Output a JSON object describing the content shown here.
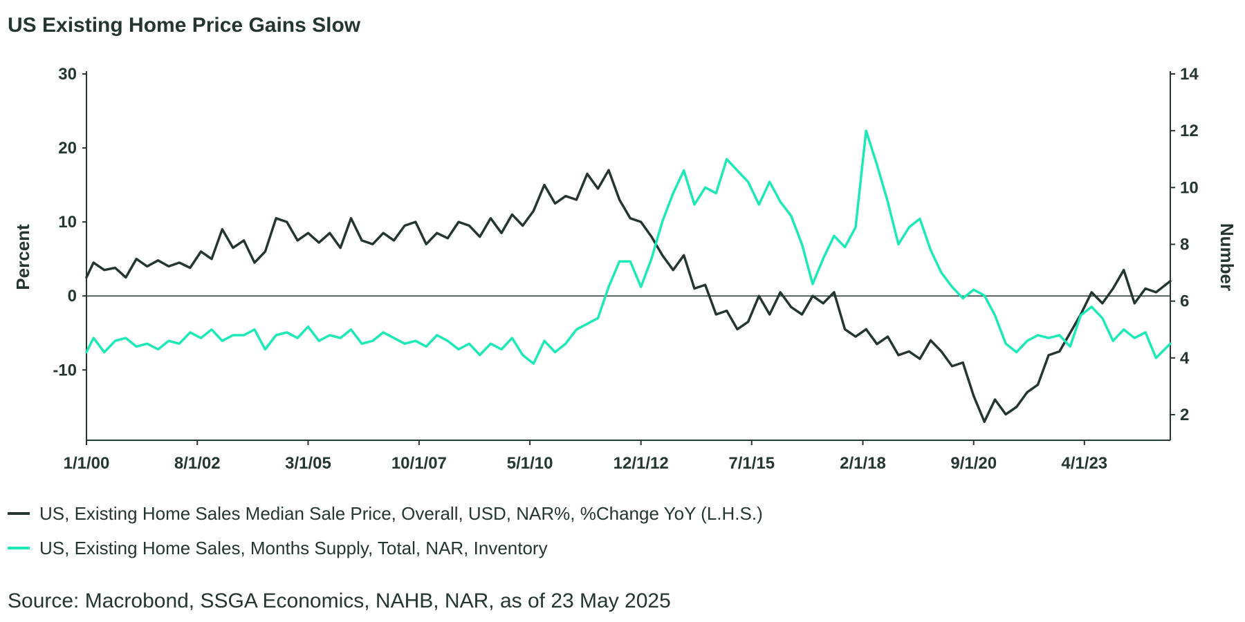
{
  "title": "US Existing Home Price Gains Slow",
  "source": "Source: Macrobond, SSGA Economics, NAHB, NAR, as of 23 May 2025",
  "colors": {
    "series_price": "#253531",
    "series_supply": "#1de9b6",
    "axis": "#253531",
    "zero_line": "#253531"
  },
  "chart_data": {
    "type": "line",
    "title": "US Existing Home Price Gains Slow",
    "grid": false,
    "legend_position": "bottom-left",
    "x_axis": {
      "type": "date",
      "range": [
        "2000-01-01",
        "2025-04-01"
      ],
      "tick_labels": [
        "1/1/00",
        "8/1/02",
        "3/1/05",
        "10/1/07",
        "5/1/10",
        "12/1/12",
        "7/1/15",
        "2/1/18",
        "9/1/20",
        "4/1/23"
      ],
      "tick_dates": [
        "2000-01-01",
        "2002-08-01",
        "2005-03-01",
        "2007-10-01",
        "2010-05-01",
        "2012-12-01",
        "2015-07-01",
        "2018-02-01",
        "2020-09-01",
        "2023-04-01"
      ]
    },
    "y_left": {
      "label": "Percent",
      "range": [
        -19.5,
        30
      ],
      "tick_values": [
        30,
        20,
        10,
        0,
        -10
      ],
      "tick_labels": [
        "30",
        "20",
        "10",
        "0",
        "-10"
      ]
    },
    "y_right": {
      "label": "Number",
      "range": [
        1.1,
        14
      ],
      "tick_values": [
        14,
        12,
        10,
        8,
        6,
        4,
        2
      ],
      "tick_labels": [
        "14",
        "12",
        "10",
        "8",
        "6",
        "4",
        "2"
      ]
    },
    "series": [
      {
        "name": "US, Existing Home Sales Median Sale Price, Overall, USD, NAR%, %Change YoY (L.H.S.)",
        "axis": "left",
        "points": [
          [
            "2000-01-01",
            2.5
          ],
          [
            "2000-03-01",
            4.5
          ],
          [
            "2000-06-01",
            3.5
          ],
          [
            "2000-09-01",
            3.8
          ],
          [
            "2000-12-01",
            2.5
          ],
          [
            "2001-03-01",
            5.0
          ],
          [
            "2001-06-01",
            4.0
          ],
          [
            "2001-09-01",
            4.8
          ],
          [
            "2001-12-01",
            4.0
          ],
          [
            "2002-03-01",
            4.5
          ],
          [
            "2002-06-01",
            3.8
          ],
          [
            "2002-09-01",
            6.0
          ],
          [
            "2002-12-01",
            5.0
          ],
          [
            "2003-03-01",
            9.0
          ],
          [
            "2003-06-01",
            6.5
          ],
          [
            "2003-09-01",
            7.5
          ],
          [
            "2003-12-01",
            4.5
          ],
          [
            "2004-03-01",
            6.0
          ],
          [
            "2004-06-01",
            10.5
          ],
          [
            "2004-09-01",
            10.0
          ],
          [
            "2004-12-01",
            7.5
          ],
          [
            "2005-03-01",
            8.5
          ],
          [
            "2005-06-01",
            7.2
          ],
          [
            "2005-09-01",
            8.5
          ],
          [
            "2005-12-01",
            6.5
          ],
          [
            "2006-03-01",
            10.5
          ],
          [
            "2006-06-01",
            7.5
          ],
          [
            "2006-09-01",
            7.0
          ],
          [
            "2006-12-01",
            8.5
          ],
          [
            "2007-03-01",
            7.5
          ],
          [
            "2007-06-01",
            9.5
          ],
          [
            "2007-09-01",
            10.0
          ],
          [
            "2007-12-01",
            7.0
          ],
          [
            "2008-03-01",
            8.5
          ],
          [
            "2008-06-01",
            7.8
          ],
          [
            "2008-09-01",
            10.0
          ],
          [
            "2008-12-01",
            9.5
          ],
          [
            "2009-03-01",
            8.0
          ],
          [
            "2009-06-01",
            10.5
          ],
          [
            "2009-09-01",
            8.5
          ],
          [
            "2009-12-01",
            11.0
          ],
          [
            "2010-03-01",
            9.5
          ],
          [
            "2010-06-01",
            11.5
          ],
          [
            "2010-09-01",
            15.0
          ],
          [
            "2010-12-01",
            12.5
          ],
          [
            "2011-03-01",
            13.5
          ],
          [
            "2011-06-01",
            13.0
          ],
          [
            "2011-09-01",
            16.5
          ],
          [
            "2011-12-01",
            14.5
          ],
          [
            "2012-03-01",
            17.0
          ],
          [
            "2012-06-01",
            13.0
          ],
          [
            "2012-09-01",
            10.5
          ],
          [
            "2012-12-01",
            10.0
          ],
          [
            "2013-03-01",
            8.0
          ],
          [
            "2013-06-01",
            5.5
          ],
          [
            "2013-09-01",
            3.5
          ],
          [
            "2013-12-01",
            5.5
          ],
          [
            "2014-03-01",
            1.0
          ],
          [
            "2014-06-01",
            1.5
          ],
          [
            "2014-09-01",
            -2.5
          ],
          [
            "2014-12-01",
            -2.0
          ],
          [
            "2015-03-01",
            -4.5
          ],
          [
            "2015-06-01",
            -3.5
          ],
          [
            "2015-09-01",
            0.0
          ],
          [
            "2015-12-01",
            -2.5
          ],
          [
            "2016-03-01",
            0.5
          ],
          [
            "2016-06-01",
            -1.5
          ],
          [
            "2016-09-01",
            -2.5
          ],
          [
            "2016-12-01",
            0.0
          ],
          [
            "2017-03-01",
            -1.0
          ],
          [
            "2017-06-01",
            0.5
          ],
          [
            "2017-09-01",
            -4.5
          ],
          [
            "2017-12-01",
            -5.5
          ],
          [
            "2018-03-01",
            -4.5
          ],
          [
            "2018-06-01",
            -6.5
          ],
          [
            "2018-09-01",
            -5.5
          ],
          [
            "2018-12-01",
            -8.0
          ],
          [
            "2019-03-01",
            -7.5
          ],
          [
            "2019-06-01",
            -8.5
          ],
          [
            "2019-09-01",
            -6.0
          ],
          [
            "2019-12-01",
            -7.5
          ],
          [
            "2020-03-01",
            -9.5
          ],
          [
            "2020-06-01",
            -9.0
          ],
          [
            "2020-09-01",
            -13.5
          ],
          [
            "2020-12-01",
            -17.0
          ],
          [
            "2021-03-01",
            -14.0
          ],
          [
            "2021-06-01",
            -16.0
          ],
          [
            "2021-09-01",
            -15.0
          ],
          [
            "2021-12-01",
            -13.0
          ],
          [
            "2022-03-01",
            -12.0
          ],
          [
            "2022-06-01",
            -8.0
          ],
          [
            "2022-09-01",
            -7.5
          ],
          [
            "2022-12-01",
            -5.0
          ],
          [
            "2023-03-01",
            -2.5
          ],
          [
            "2023-06-01",
            0.5
          ],
          [
            "2023-09-01",
            -1.0
          ],
          [
            "2023-12-01",
            1.0
          ],
          [
            "2024-03-01",
            3.5
          ],
          [
            "2024-06-01",
            -1.0
          ],
          [
            "2024-09-01",
            1.0
          ],
          [
            "2024-12-01",
            0.5
          ],
          [
            "2025-04-01",
            2.0
          ]
        ]
      },
      {
        "name": "US, Existing Home Sales, Months Supply, Total, NAR, Inventory",
        "axis": "right",
        "points": [
          [
            "2000-01-01",
            4.2
          ],
          [
            "2000-03-01",
            4.7
          ],
          [
            "2000-06-01",
            4.2
          ],
          [
            "2000-09-01",
            4.6
          ],
          [
            "2000-12-01",
            4.7
          ],
          [
            "2001-03-01",
            4.4
          ],
          [
            "2001-06-01",
            4.5
          ],
          [
            "2001-09-01",
            4.3
          ],
          [
            "2001-12-01",
            4.6
          ],
          [
            "2002-03-01",
            4.5
          ],
          [
            "2002-06-01",
            4.9
          ],
          [
            "2002-09-01",
            4.7
          ],
          [
            "2002-12-01",
            5.0
          ],
          [
            "2003-03-01",
            4.6
          ],
          [
            "2003-06-01",
            4.8
          ],
          [
            "2003-09-01",
            4.8
          ],
          [
            "2003-12-01",
            5.0
          ],
          [
            "2004-03-01",
            4.3
          ],
          [
            "2004-06-01",
            4.8
          ],
          [
            "2004-09-01",
            4.9
          ],
          [
            "2004-12-01",
            4.7
          ],
          [
            "2005-03-01",
            5.1
          ],
          [
            "2005-06-01",
            4.6
          ],
          [
            "2005-09-01",
            4.8
          ],
          [
            "2005-12-01",
            4.7
          ],
          [
            "2006-03-01",
            5.0
          ],
          [
            "2006-06-01",
            4.5
          ],
          [
            "2006-09-01",
            4.6
          ],
          [
            "2006-12-01",
            4.9
          ],
          [
            "2007-03-01",
            4.7
          ],
          [
            "2007-06-01",
            4.5
          ],
          [
            "2007-09-01",
            4.6
          ],
          [
            "2007-12-01",
            4.4
          ],
          [
            "2008-03-01",
            4.8
          ],
          [
            "2008-06-01",
            4.6
          ],
          [
            "2008-09-01",
            4.3
          ],
          [
            "2008-12-01",
            4.5
          ],
          [
            "2009-03-01",
            4.1
          ],
          [
            "2009-06-01",
            4.5
          ],
          [
            "2009-09-01",
            4.3
          ],
          [
            "2009-12-01",
            4.7
          ],
          [
            "2010-03-01",
            4.1
          ],
          [
            "2010-06-01",
            3.8
          ],
          [
            "2010-09-01",
            4.6
          ],
          [
            "2010-12-01",
            4.2
          ],
          [
            "2011-03-01",
            4.5
          ],
          [
            "2011-06-01",
            5.0
          ],
          [
            "2011-09-01",
            5.2
          ],
          [
            "2011-12-01",
            5.4
          ],
          [
            "2012-03-01",
            6.5
          ],
          [
            "2012-06-01",
            7.4
          ],
          [
            "2012-09-01",
            7.4
          ],
          [
            "2012-12-01",
            6.5
          ],
          [
            "2013-03-01",
            7.5
          ],
          [
            "2013-06-01",
            8.8
          ],
          [
            "2013-09-01",
            9.8
          ],
          [
            "2013-12-01",
            10.6
          ],
          [
            "2014-03-01",
            9.4
          ],
          [
            "2014-06-01",
            10.0
          ],
          [
            "2014-09-01",
            9.8
          ],
          [
            "2014-12-01",
            11.0
          ],
          [
            "2015-03-01",
            10.6
          ],
          [
            "2015-06-01",
            10.2
          ],
          [
            "2015-09-01",
            9.4
          ],
          [
            "2015-12-01",
            10.2
          ],
          [
            "2016-03-01",
            9.5
          ],
          [
            "2016-06-01",
            9.0
          ],
          [
            "2016-09-01",
            8.0
          ],
          [
            "2016-12-01",
            6.6
          ],
          [
            "2017-03-01",
            7.5
          ],
          [
            "2017-06-01",
            8.3
          ],
          [
            "2017-09-01",
            7.9
          ],
          [
            "2017-12-01",
            8.6
          ],
          [
            "2018-03-01",
            12.0
          ],
          [
            "2018-06-01",
            10.8
          ],
          [
            "2018-09-01",
            9.5
          ],
          [
            "2018-12-01",
            8.0
          ],
          [
            "2019-03-01",
            8.6
          ],
          [
            "2019-06-01",
            8.9
          ],
          [
            "2019-09-01",
            7.8
          ],
          [
            "2019-12-01",
            7.0
          ],
          [
            "2020-03-01",
            6.5
          ],
          [
            "2020-06-01",
            6.1
          ],
          [
            "2020-09-01",
            6.4
          ],
          [
            "2020-12-01",
            6.2
          ],
          [
            "2021-03-01",
            5.5
          ],
          [
            "2021-06-01",
            4.5
          ],
          [
            "2021-09-01",
            4.2
          ],
          [
            "2021-12-01",
            4.6
          ],
          [
            "2022-03-01",
            4.8
          ],
          [
            "2022-06-01",
            4.7
          ],
          [
            "2022-09-01",
            4.8
          ],
          [
            "2022-12-01",
            4.4
          ],
          [
            "2023-03-01",
            5.5
          ],
          [
            "2023-06-01",
            5.8
          ],
          [
            "2023-09-01",
            5.4
          ],
          [
            "2023-12-01",
            4.6
          ],
          [
            "2024-03-01",
            5.0
          ],
          [
            "2024-06-01",
            4.7
          ],
          [
            "2024-09-01",
            4.9
          ],
          [
            "2024-12-01",
            4.0
          ],
          [
            "2025-04-01",
            4.5
          ]
        ]
      }
    ]
  }
}
